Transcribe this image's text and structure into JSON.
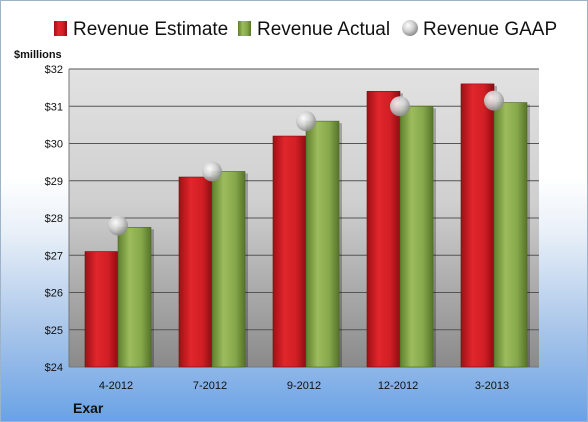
{
  "chart_data": {
    "type": "bar",
    "unit_label": "$millions",
    "company": "Exar",
    "categories": [
      "4-2012",
      "7-2012",
      "9-2012",
      "12-2012",
      "3-2013"
    ],
    "series": [
      {
        "name": "Revenue Estimate",
        "kind": "bar",
        "color": "#d42027",
        "values": [
          27.1,
          29.1,
          30.2,
          31.4,
          31.6
        ]
      },
      {
        "name": "Revenue Actual",
        "kind": "bar",
        "color": "#8aab4d",
        "values": [
          27.75,
          29.25,
          30.6,
          31.0,
          31.1
        ]
      },
      {
        "name": "Revenue GAAP",
        "kind": "marker",
        "color": "#c8c8c8",
        "values": [
          27.8,
          29.25,
          30.6,
          31.0,
          31.15
        ]
      }
    ],
    "ylim": [
      24,
      32
    ],
    "yticks": [
      "$24",
      "$25",
      "$26",
      "$27",
      "$28",
      "$29",
      "$30",
      "$31",
      "$32"
    ],
    "grid": true,
    "legend_position": "top"
  }
}
